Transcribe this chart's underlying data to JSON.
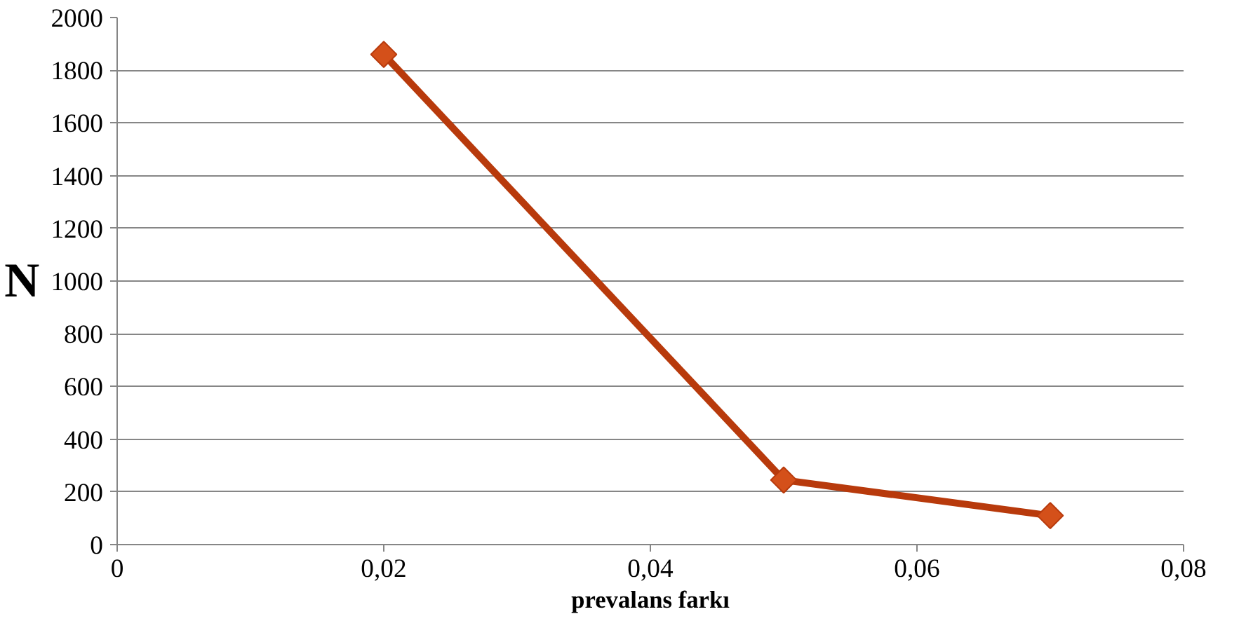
{
  "chart_data": {
    "type": "line",
    "xlabel": "prevalans farkı",
    "ylabel": "N",
    "x": [
      0.02,
      0.05,
      0.07
    ],
    "series": [
      {
        "color": "#b83a0c",
        "values": [
          1860,
          245,
          110
        ]
      }
    ],
    "xlim": [
      0,
      0.08
    ],
    "xticks": [
      0,
      {
        "value": 0.02,
        "label": "0,02"
      },
      {
        "value": 0.04,
        "label": "0,04"
      },
      {
        "value": 0.06,
        "label": "0,06"
      },
      {
        "value": 0.08,
        "label": "0,08"
      }
    ],
    "ylim": [
      0,
      2000
    ],
    "yticks": [
      0,
      200,
      400,
      600,
      800,
      1000,
      1200,
      1400,
      1600,
      1800,
      2000
    ],
    "grid": "y",
    "marker": "diamond",
    "line_style": "solid"
  }
}
